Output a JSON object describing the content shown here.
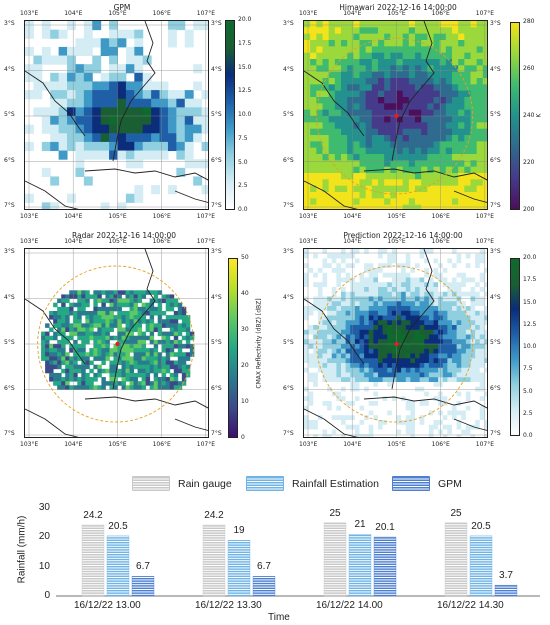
{
  "maps": [
    {
      "title": "GPM",
      "colormap": [
        "#ffffff",
        "#d4ecf4",
        "#8fcfe0",
        "#3f99c7",
        "#1f5fa8",
        "#0b2d7a",
        "#1a5e34",
        "#0e6b2d"
      ],
      "colorbar_ticks": [
        "20.0",
        "17.5",
        "15.0",
        "12.5",
        "10.0",
        "7.5",
        "5.0",
        "2.5",
        "0.0"
      ],
      "colorbar_label": "",
      "bg": "#ffffff"
    },
    {
      "title": "Himawari 2022-12-16 14:00:00",
      "colormap": [
        "#4b0f5c",
        "#463a8a",
        "#2f6a8f",
        "#23918d",
        "#3fbb70",
        "#9ad83c",
        "#f2e31a"
      ],
      "colorbar_ticks": [
        "280",
        "260",
        "240",
        "220",
        "200"
      ],
      "colorbar_label": "K",
      "bg": "#3aa98a"
    },
    {
      "title": "Radar 2022-12-16 14:00:00",
      "colormap": [
        "#3b0f70",
        "#3d4a8a",
        "#2a7b8e",
        "#25a884",
        "#5dc963",
        "#b8de29",
        "#fde725"
      ],
      "colorbar_ticks": [
        "50",
        "40",
        "30",
        "20",
        "10",
        "0"
      ],
      "colorbar_label": "CMAX Reflectivity (dBZ) [dBZ]",
      "bg": "#ffffff"
    },
    {
      "title": "Prediction 2022-12-16 14:00:00",
      "colormap": [
        "#ffffff",
        "#d4ecf4",
        "#8fcfe0",
        "#3f99c7",
        "#1f5fa8",
        "#0b2d7a",
        "#1a5e34",
        "#0e6b2d"
      ],
      "colorbar_ticks": [
        "20.0",
        "17.5",
        "15.0",
        "12.5",
        "10.0",
        "7.5",
        "5.0",
        "2.5",
        "0.0"
      ],
      "colorbar_label": "",
      "bg": "#e8f3f8"
    }
  ],
  "lon_ticks": [
    "103°E",
    "104°E",
    "105°E",
    "106°E",
    "107°E"
  ],
  "lat_ticks": [
    "3°S",
    "4°S",
    "5°S",
    "6°S",
    "7°S"
  ],
  "legend": {
    "items": [
      {
        "label": "Rain gauge",
        "color": "#c8c8c8"
      },
      {
        "label": "Rainfall Estimation",
        "color": "#6fb4e6"
      },
      {
        "label": "GPM",
        "color": "#4d7fd0"
      }
    ]
  },
  "chart_data": {
    "type": "bar",
    "title": "",
    "xlabel": "Time",
    "ylabel": "Rainfall (mm/h)",
    "ylim": [
      0,
      30
    ],
    "yticks": [
      "0",
      "10",
      "20",
      "30"
    ],
    "categories": [
      "16/12/22 13.00",
      "16/12/22 13.30",
      "16/12/22 14.00",
      "16/12/22 14.30"
    ],
    "series": [
      {
        "name": "Rain gauge",
        "values": [
          24.2,
          24.2,
          25,
          25
        ],
        "labels": [
          "24.2",
          "24.2",
          "25",
          "25"
        ]
      },
      {
        "name": "Rainfall Estimation",
        "values": [
          20.5,
          19,
          21,
          20.5
        ],
        "labels": [
          "20.5",
          "19",
          "21",
          "20.5"
        ]
      },
      {
        "name": "GPM",
        "values": [
          6.7,
          6.7,
          20.1,
          3.7
        ],
        "labels": [
          "6.7",
          "6.7",
          "20.1",
          "3.7"
        ]
      }
    ]
  }
}
